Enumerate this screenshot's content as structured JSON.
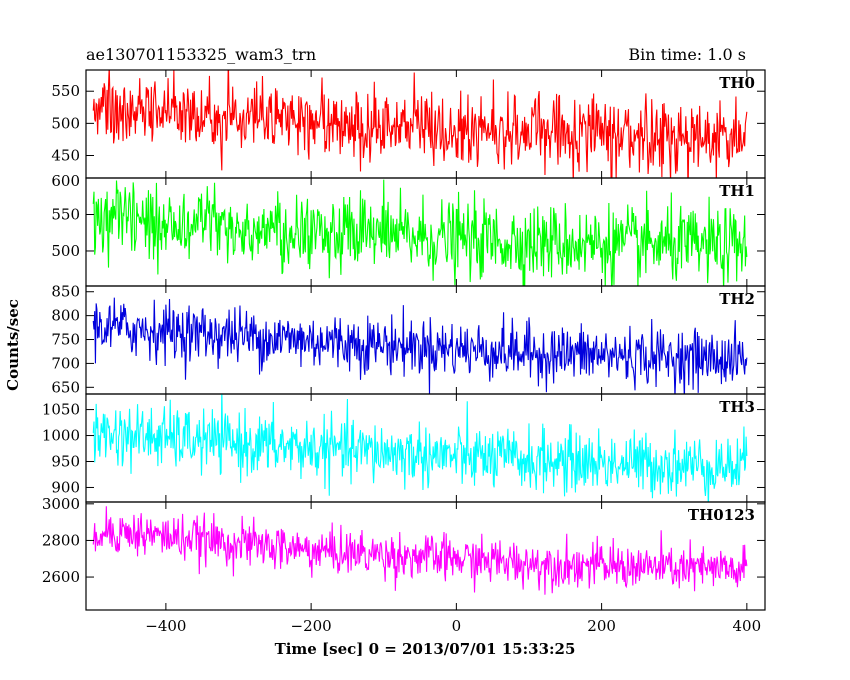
{
  "header": {
    "title": "ae130701153325_wam3_trn",
    "bin_time": "Bin time: 1.0 s"
  },
  "chart_data": {
    "type": "line",
    "xlabel": "Time [sec] 0 = 2013/07/01 15:33:25",
    "ylabel": "Counts/sec",
    "xlim": [
      -510,
      425
    ],
    "x_ticks": [
      -400,
      -200,
      0,
      200,
      400
    ],
    "x_tick_labels": [
      "−400",
      "−200",
      "0",
      "200",
      "400"
    ],
    "x_range": [
      -500,
      400
    ],
    "bin_time_s": 1.0,
    "panels": [
      {
        "name": "TH0",
        "color": "#ff0000",
        "ylim": [
          415,
          583
        ],
        "y_ticks": [
          450,
          500,
          550
        ],
        "y_tick_labels": [
          "450",
          "500",
          "550"
        ],
        "trend": [
          [
            -500,
            525
          ],
          [
            -200,
            505
          ],
          [
            100,
            488
          ],
          [
            400,
            478
          ]
        ],
        "noise": 28
      },
      {
        "name": "TH1",
        "color": "#00ff00",
        "ylim": [
          452,
          600
        ],
        "y_ticks": [
          450,
          500,
          550,
          600
        ],
        "y_tick_labels": [
          "450",
          "500",
          "550",
          "600"
        ],
        "trend": [
          [
            -500,
            545
          ],
          [
            -200,
            525
          ],
          [
            100,
            512
          ],
          [
            400,
            505
          ]
        ],
        "noise": 26
      },
      {
        "name": "TH2",
        "color": "#0000dd",
        "ylim": [
          636,
          862
        ],
        "y_ticks": [
          650,
          700,
          750,
          800,
          850
        ],
        "y_tick_labels": [
          "650",
          "700",
          "750",
          "800",
          "850"
        ],
        "trend": [
          [
            -500,
            778
          ],
          [
            -200,
            748
          ],
          [
            100,
            722
          ],
          [
            400,
            708
          ]
        ],
        "noise": 30
      },
      {
        "name": "TH3",
        "color": "#00ffff",
        "ylim": [
          872,
          1080
        ],
        "y_ticks": [
          900,
          950,
          1000,
          1050
        ],
        "y_tick_labels": [
          "900",
          "950",
          "1000",
          "1050"
        ],
        "trend": [
          [
            -500,
            1005
          ],
          [
            -200,
            975
          ],
          [
            100,
            952
          ],
          [
            400,
            940
          ]
        ],
        "noise": 30
      },
      {
        "name": "TH0123",
        "color": "#ff00ff",
        "ylim": [
          2420,
          3010
        ],
        "y_ticks": [
          2600,
          2800,
          3000
        ],
        "y_tick_labels": [
          "2600",
          "2800",
          "3000"
        ],
        "trend": [
          [
            -500,
            2860
          ],
          [
            -200,
            2745
          ],
          [
            100,
            2675
          ],
          [
            400,
            2635
          ]
        ],
        "noise": 62
      }
    ]
  }
}
